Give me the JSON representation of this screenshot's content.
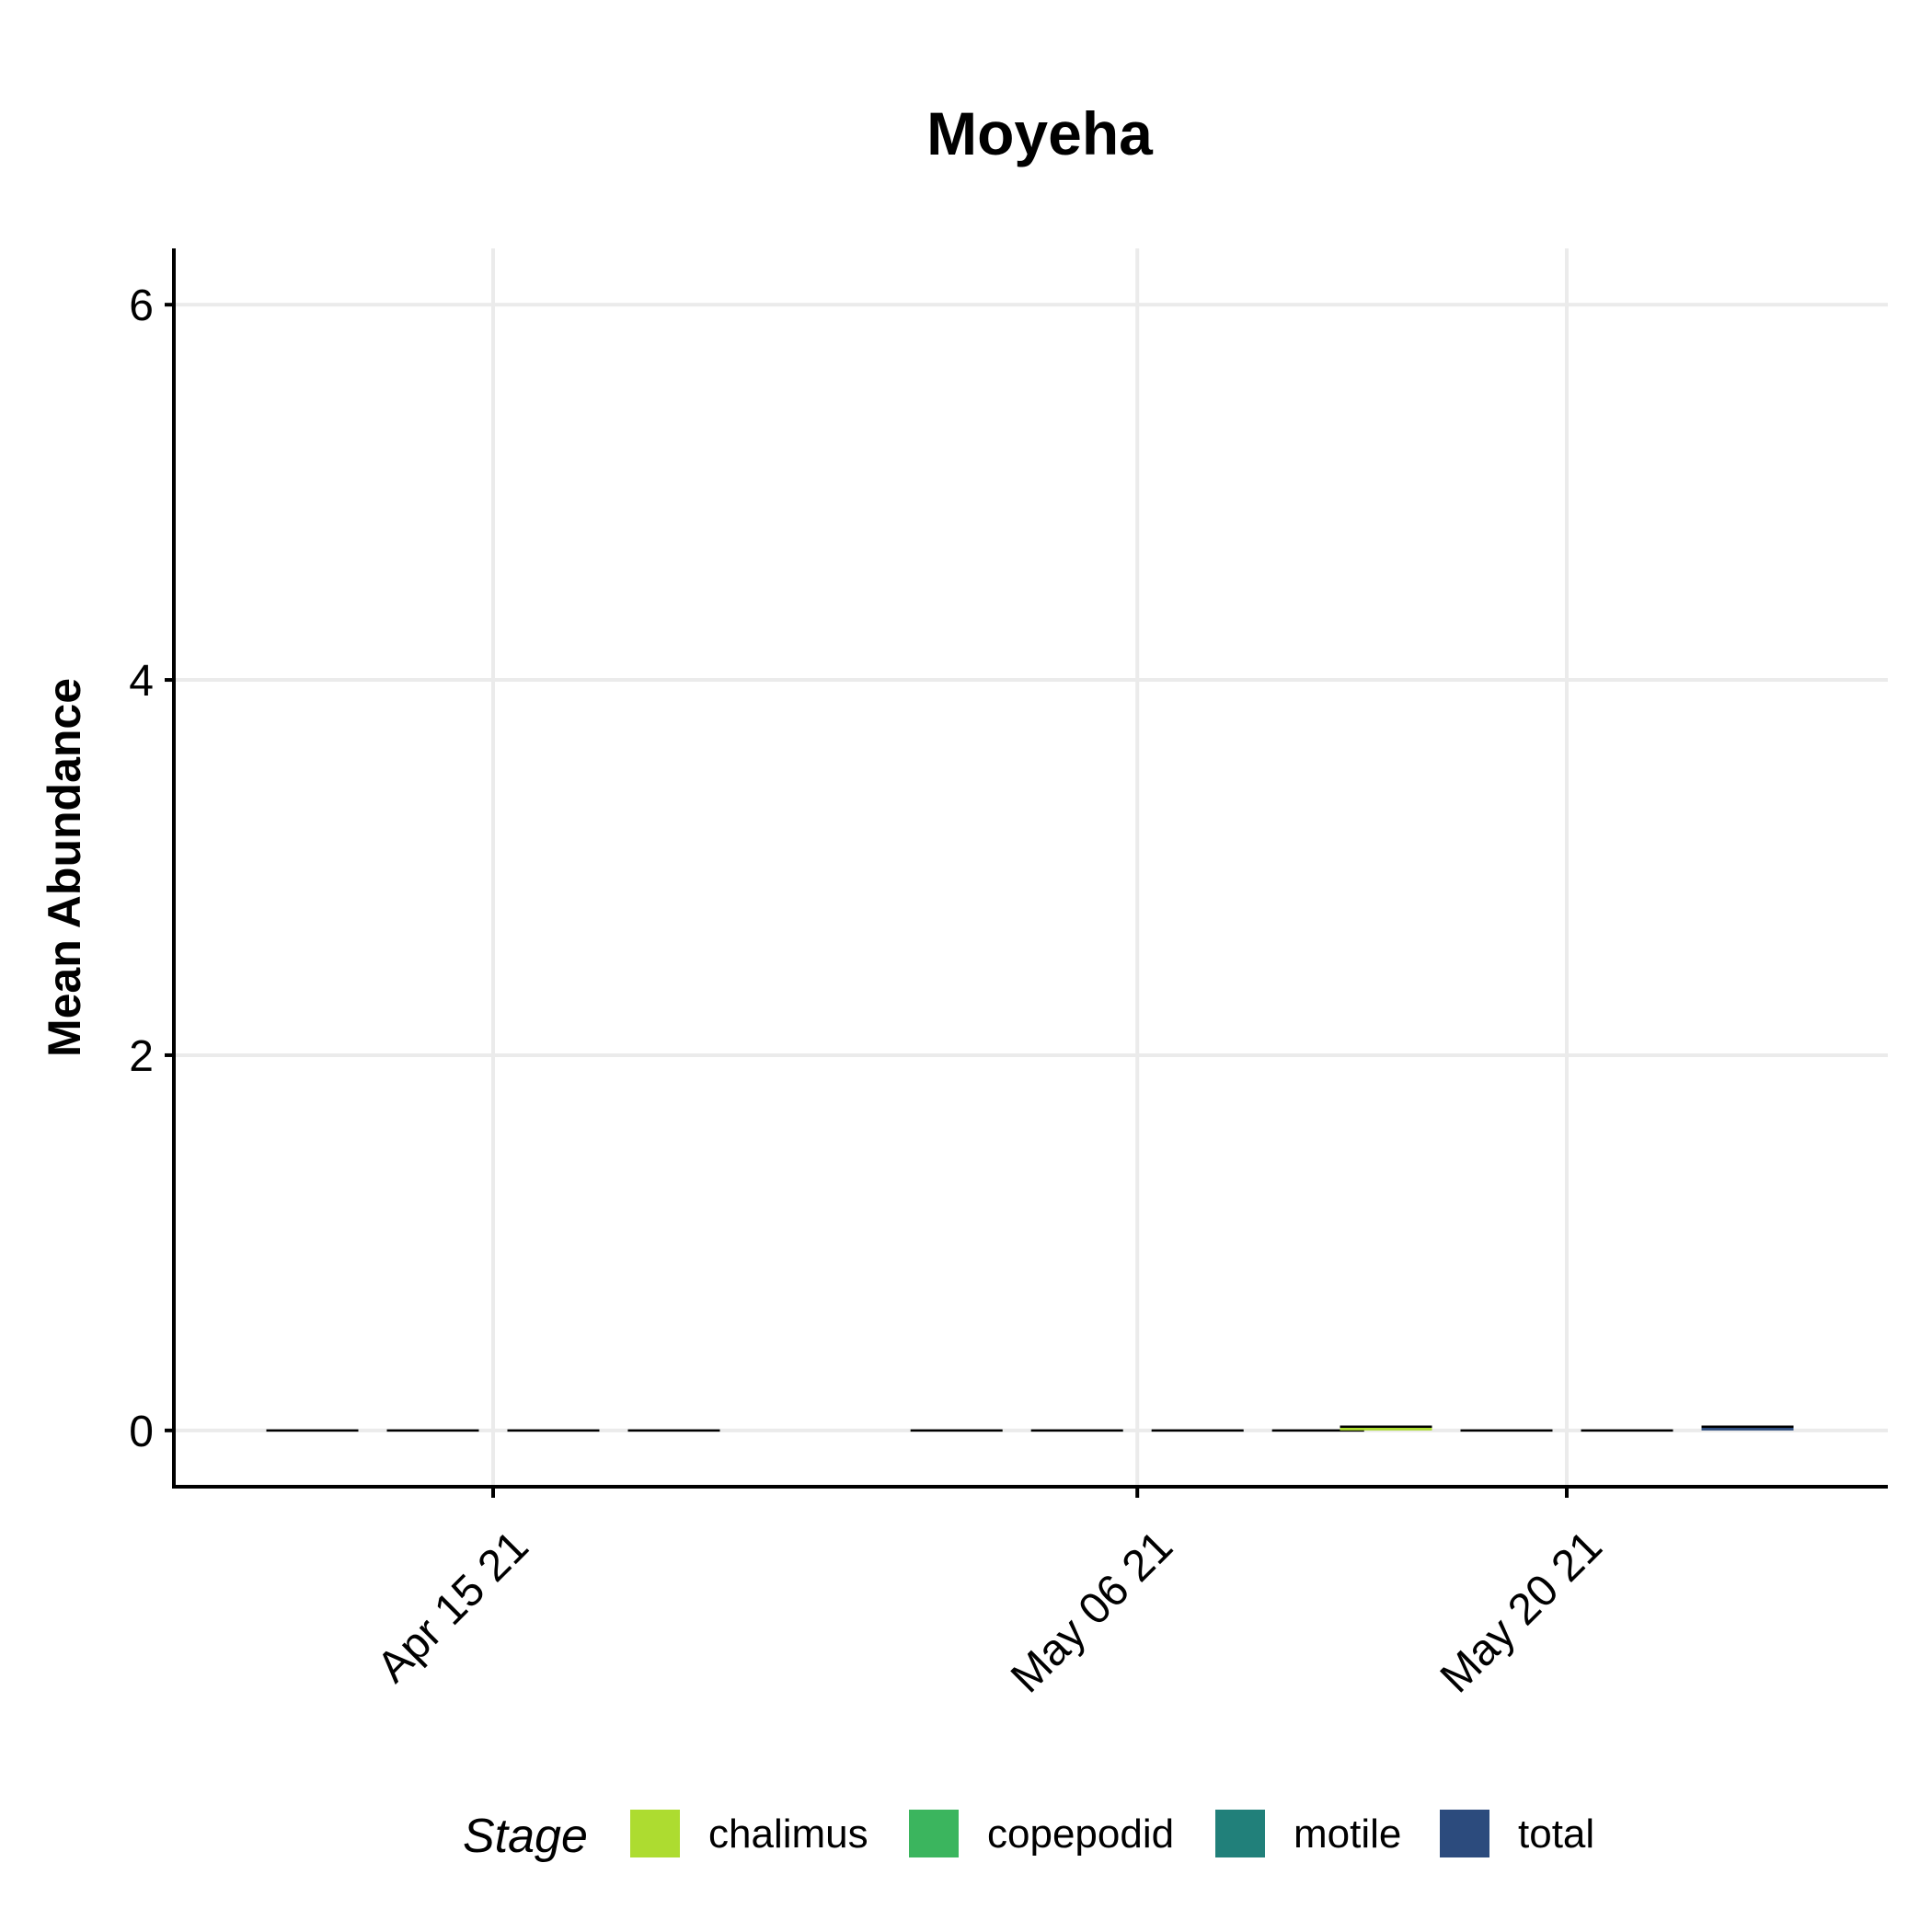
{
  "chart_data": {
    "type": "bar",
    "title": "Moyeha",
    "xlabel": "",
    "ylabel": "Mean Abundance",
    "ylim": [
      -0.3,
      6.3
    ],
    "y_ticks": [
      0,
      2,
      4,
      6
    ],
    "x_tick_labels": [
      "Apr 15 21",
      "May 06 21",
      "May 20 21"
    ],
    "grid": true,
    "legend": {
      "title": "Stage",
      "position": "bottom",
      "entries": [
        {
          "name": "chalimus",
          "color": "#addc30"
        },
        {
          "name": "copepodid",
          "color": "#3bb55e"
        },
        {
          "name": "motile",
          "color": "#21807a"
        },
        {
          "name": "total",
          "color": "#2c4b7d"
        }
      ]
    },
    "dates": [
      "Apr 15 21",
      "May 06 21",
      "May 20 21"
    ],
    "series": [
      {
        "name": "chalimus",
        "color": "#addc30",
        "values": [
          0,
          0,
          0.02
        ]
      },
      {
        "name": "copepodid",
        "color": "#3bb55e",
        "values": [
          0,
          0,
          0
        ]
      },
      {
        "name": "motile",
        "color": "#21807a",
        "values": [
          0,
          0,
          0
        ]
      },
      {
        "name": "total",
        "color": "#2c4b7d",
        "values": [
          0,
          0,
          0.02
        ]
      }
    ]
  }
}
